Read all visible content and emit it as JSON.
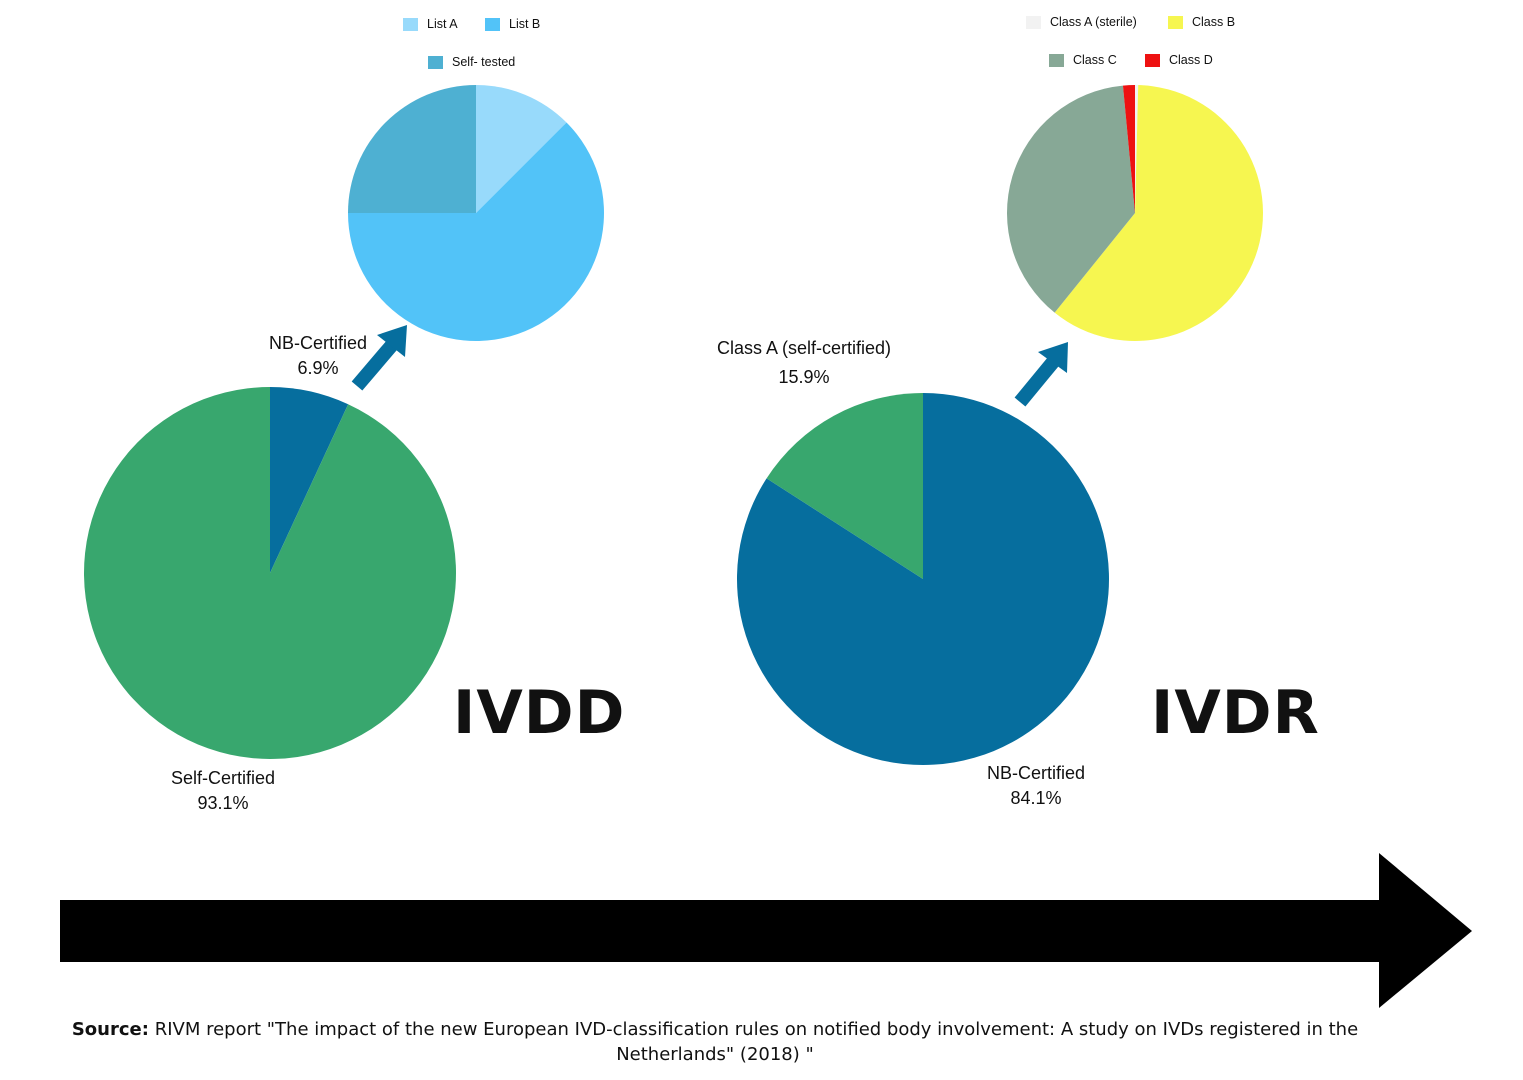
{
  "charts": {
    "ivdd_main": {
      "big_label": "IVDD",
      "slices": [
        {
          "name": "NB-Certified",
          "value": 6.9,
          "pct_label": "6.9%",
          "color": "#066e9e"
        },
        {
          "name": "Self-Certified",
          "value": 93.1,
          "pct_label": "93.1%",
          "color": "#38a76e"
        }
      ]
    },
    "ivdd_nb": {
      "legend": [
        {
          "label": "List A",
          "color": "#98dafb"
        },
        {
          "label": "List B",
          "color": "#52c3f8"
        },
        {
          "label": "Self- tested",
          "color": "#4eb0d2"
        }
      ]
    },
    "ivdr_main": {
      "big_label": "IVDR",
      "slices": [
        {
          "name": "NB-Certified",
          "value": 84.1,
          "pct_label": "84.1%",
          "color": "#066e9e"
        },
        {
          "name": "Class A (self-certified)",
          "value": 15.9,
          "pct_label": "15.9%",
          "color": "#38a76e"
        }
      ]
    },
    "ivdr_nb": {
      "legend": [
        {
          "label": "Class A (sterile)",
          "color": "#f2f2f2"
        },
        {
          "label": "Class B",
          "color": "#f6f650"
        },
        {
          "label": "Class C",
          "color": "#87a896"
        },
        {
          "label": "Class D",
          "color": "#ee1111"
        }
      ]
    }
  },
  "chart_data": [
    {
      "type": "pie",
      "title": "IVDD",
      "categories": [
        "NB-Certified",
        "Self-Certified"
      ],
      "values": [
        6.9,
        93.1
      ],
      "colors": [
        "#066e9e",
        "#38a76e"
      ]
    },
    {
      "type": "pie",
      "categories": [
        "List A",
        "List B",
        "Self- tested"
      ],
      "values": [
        12.5,
        62.5,
        25.0
      ],
      "colors": [
        "#98dafb",
        "#52c3f8",
        "#4eb0d2"
      ],
      "legend": "top"
    },
    {
      "type": "pie",
      "title": "IVDR",
      "categories": [
        "NB-Certified",
        "Class A (self-certified)"
      ],
      "values": [
        84.1,
        15.9
      ],
      "colors": [
        "#066e9e",
        "#38a76e"
      ]
    },
    {
      "type": "pie",
      "categories": [
        "Class A (sterile)",
        "Class B",
        "Class C",
        "Class D"
      ],
      "values": [
        0.4,
        60.4,
        37.7,
        1.5
      ],
      "colors": [
        "#f2f2f2",
        "#f6f650",
        "#87a896",
        "#ee1111"
      ],
      "legend": "top"
    }
  ],
  "source": {
    "prefix": "Source:",
    "text": "RIVM report \"The impact of the new European IVD-classification rules on notified body involvement: A study on IVDs registered in the Netherlands\" (2018) \""
  },
  "colors": {
    "arrow": "#066e9e",
    "timeline": "#000000"
  }
}
